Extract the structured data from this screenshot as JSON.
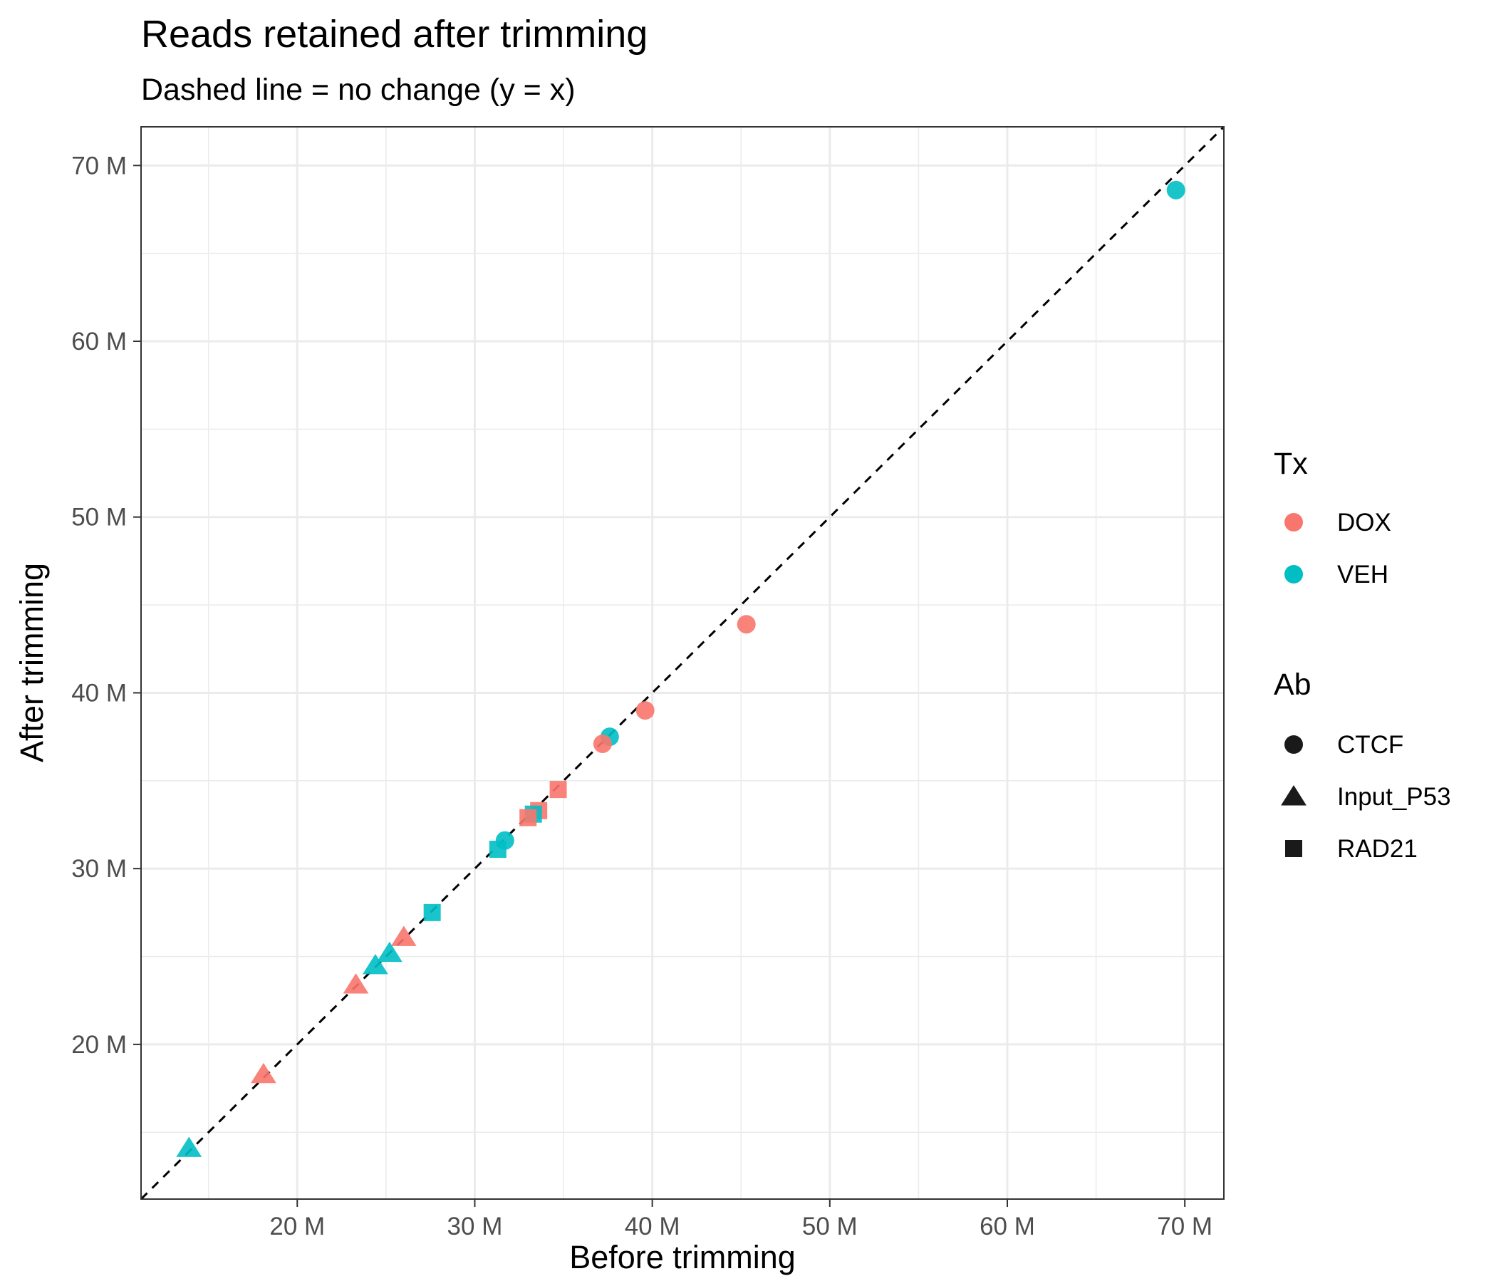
{
  "chart_data": {
    "type": "scatter",
    "title": "Reads retained after trimming",
    "subtitle": "Dashed line = no change (y = x)",
    "xlabel": "Before trimming",
    "ylabel": "After trimming",
    "xlim": [
      11.2,
      72.2
    ],
    "ylim": [
      11.2,
      72.2
    ],
    "x_ticks": [
      20,
      30,
      40,
      50,
      60,
      70
    ],
    "y_ticks": [
      20,
      30,
      40,
      50,
      60,
      70
    ],
    "tick_suffix": " M",
    "x_tick_labels": [
      "20 M",
      "30 M",
      "40 M",
      "50 M",
      "60 M",
      "70 M"
    ],
    "y_tick_labels": [
      "20 M",
      "30 M",
      "40 M",
      "50 M",
      "60 M",
      "70 M"
    ],
    "grid": true,
    "reference_line": "y = x",
    "legend_position": "right",
    "legends": [
      {
        "title": "Tx",
        "entries": [
          {
            "label": "DOX",
            "color": "#F8766D",
            "shape": "circle"
          },
          {
            "label": "VEH",
            "color": "#00BFC4",
            "shape": "circle"
          }
        ]
      },
      {
        "title": "Ab",
        "entries": [
          {
            "label": "CTCF",
            "color": "#1a1a1a",
            "shape": "circle"
          },
          {
            "label": "Input_P53",
            "color": "#1a1a1a",
            "shape": "triangle"
          },
          {
            "label": "RAD21",
            "color": "#1a1a1a",
            "shape": "square"
          }
        ]
      }
    ],
    "points": [
      {
        "x": 69.5,
        "y": 68.6,
        "Tx": "VEH",
        "Ab": "CTCF"
      },
      {
        "x": 45.3,
        "y": 43.9,
        "Tx": "DOX",
        "Ab": "CTCF"
      },
      {
        "x": 39.6,
        "y": 39.0,
        "Tx": "DOX",
        "Ab": "CTCF"
      },
      {
        "x": 37.6,
        "y": 37.5,
        "Tx": "VEH",
        "Ab": "CTCF"
      },
      {
        "x": 37.2,
        "y": 37.1,
        "Tx": "DOX",
        "Ab": "CTCF"
      },
      {
        "x": 31.7,
        "y": 31.6,
        "Tx": "VEH",
        "Ab": "CTCF"
      },
      {
        "x": 34.7,
        "y": 34.5,
        "Tx": "DOX",
        "Ab": "RAD21"
      },
      {
        "x": 33.6,
        "y": 33.3,
        "Tx": "DOX",
        "Ab": "RAD21"
      },
      {
        "x": 33.3,
        "y": 33.1,
        "Tx": "VEH",
        "Ab": "RAD21"
      },
      {
        "x": 33.0,
        "y": 32.9,
        "Tx": "DOX",
        "Ab": "RAD21"
      },
      {
        "x": 31.3,
        "y": 31.1,
        "Tx": "VEH",
        "Ab": "RAD21"
      },
      {
        "x": 27.6,
        "y": 27.5,
        "Tx": "VEH",
        "Ab": "RAD21"
      },
      {
        "x": 26.0,
        "y": 26.1,
        "Tx": "DOX",
        "Ab": "Input_P53"
      },
      {
        "x": 25.2,
        "y": 25.2,
        "Tx": "VEH",
        "Ab": "Input_P53"
      },
      {
        "x": 24.4,
        "y": 24.5,
        "Tx": "VEH",
        "Ab": "Input_P53"
      },
      {
        "x": 23.3,
        "y": 23.4,
        "Tx": "DOX",
        "Ab": "Input_P53"
      },
      {
        "x": 18.1,
        "y": 18.3,
        "Tx": "DOX",
        "Ab": "Input_P53"
      },
      {
        "x": 13.9,
        "y": 14.1,
        "Tx": "VEH",
        "Ab": "Input_P53"
      }
    ]
  }
}
